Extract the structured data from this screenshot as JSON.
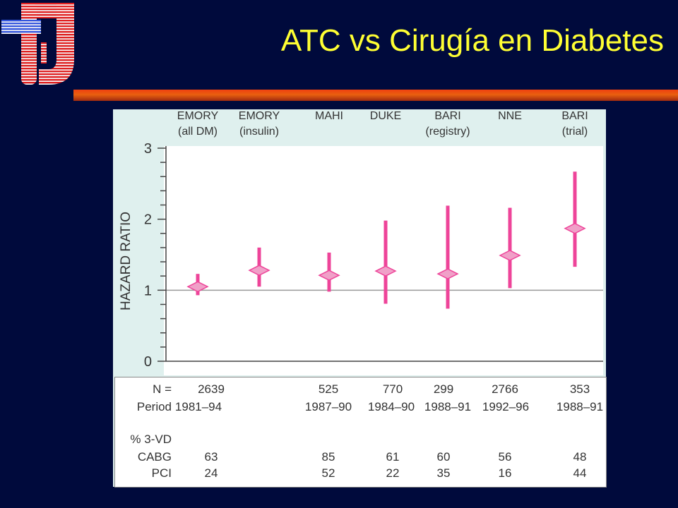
{
  "slide": {
    "title": "ATC vs Cirugía en Diabetes",
    "logo_icon": "institution-logo-icon",
    "accent_color": "#ffff33",
    "background_color": "#000a3c",
    "divider_color": "#e8600f"
  },
  "chart_data": {
    "type": "scatter",
    "style": "forest-plot",
    "ylabel": "HAZARD RATIO",
    "ylim": [
      0,
      3
    ],
    "yticks": [
      "0",
      "1",
      "2",
      "3"
    ],
    "reference_line": 1,
    "marker_color": "#ee4499",
    "studies": [
      {
        "label_line1": "EMORY",
        "label_line2": "(all DM)",
        "hr": 1.05,
        "lo": 0.93,
        "hi": 1.23
      },
      {
        "label_line1": "EMORY",
        "label_line2": "(insulin)",
        "hr": 1.28,
        "lo": 1.05,
        "hi": 1.6
      },
      {
        "label_line1": "MAHI",
        "label_line2": "",
        "hr": 1.21,
        "lo": 0.98,
        "hi": 1.53
      },
      {
        "label_line1": "DUKE",
        "label_line2": "",
        "hr": 1.27,
        "lo": 0.81,
        "hi": 1.98
      },
      {
        "label_line1": "BARI",
        "label_line2": "(registry)",
        "hr": 1.23,
        "lo": 0.74,
        "hi": 2.19
      },
      {
        "label_line1": "NNE",
        "label_line2": "",
        "hr": 1.49,
        "lo": 1.03,
        "hi": 2.16
      },
      {
        "label_line1": "BARI",
        "label_line2": "(trial)",
        "hr": 1.87,
        "lo": 1.33,
        "hi": 2.67
      }
    ]
  },
  "table": {
    "row_labels": {
      "n": "N =",
      "period": "Period",
      "vd": "% 3-VD",
      "cabg": "CABG",
      "pci": "PCI"
    },
    "columns": [
      {
        "n": "2639",
        "period": "1981–94",
        "cabg": "63",
        "pci": "24"
      },
      {
        "n": "",
        "period": "",
        "cabg": "",
        "pci": ""
      },
      {
        "n": "525",
        "period": "1987–90",
        "cabg": "85",
        "pci": "52"
      },
      {
        "n": "770",
        "period": "1984–90",
        "cabg": "61",
        "pci": "22"
      },
      {
        "n": "299",
        "period": "1988–91",
        "cabg": "60",
        "pci": "35"
      },
      {
        "n": "2766",
        "period": "1992–96",
        "cabg": "56",
        "pci": "16"
      },
      {
        "n": "353",
        "period": "1988–91",
        "cabg": "48",
        "pci": "44"
      }
    ]
  }
}
